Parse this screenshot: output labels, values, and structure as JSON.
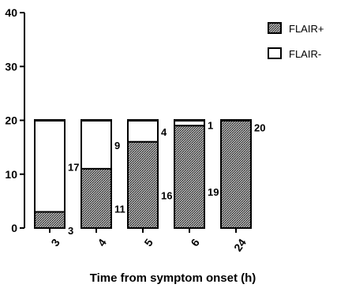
{
  "chart_data": {
    "type": "bar",
    "stacked": true,
    "categories": [
      "3",
      "4",
      "5",
      "6",
      "24"
    ],
    "series": [
      {
        "name": "FLAIR+",
        "values": [
          3,
          11,
          16,
          19,
          20
        ]
      },
      {
        "name": "FLAIR-",
        "values": [
          17,
          9,
          4,
          1,
          0
        ]
      }
    ],
    "data_labels": {
      "FLAIR+": [
        "3",
        "11",
        "16",
        "19",
        "20"
      ],
      "FLAIR-": [
        "17",
        "9",
        "4",
        "1",
        ""
      ]
    },
    "title": "",
    "xlabel": "Time from symptom onset (h)",
    "ylabel": "",
    "ylim": [
      0,
      40
    ],
    "yticks": [
      "0",
      "10",
      "20",
      "30",
      "40"
    ],
    "legend_position": "top-right",
    "grid": false,
    "colors": {
      "FLAIR+": "#8c8c8c",
      "FLAIR-": "#ffffff",
      "outline": "#000000"
    }
  }
}
